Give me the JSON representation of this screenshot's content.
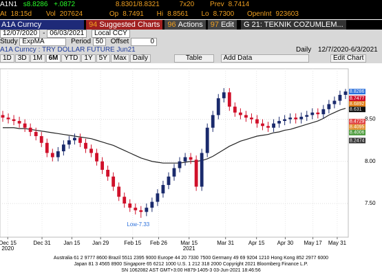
{
  "header": {
    "ticker": "A1N1",
    "last": "s8.8286",
    "change": "+.0872",
    "bid_ask": "8.8301/8.8321",
    "size": "7x20",
    "prev_label": "Prev",
    "prev": "8.7414",
    "time_label": "At",
    "time": "18:15d",
    "vol_label": "Vol",
    "vol": "207624",
    "op_label": "Op",
    "op": "8.7491",
    "hi_label": "Hi",
    "hi": "8.8561",
    "lo_label": "Lo",
    "lo": "8.7300",
    "oi_label": "OpenInt",
    "oi": "923603"
  },
  "toolbar": {
    "security": "A1A Curncy",
    "menu": [
      {
        "num": "94",
        "label": "Suggested Charts"
      },
      {
        "num": "96",
        "label": "Actions"
      },
      {
        "num": "97",
        "label": "Edit"
      }
    ],
    "page": "G 21: TEKNIK COZUMLEM..."
  },
  "settings": {
    "start": "12/07/2020",
    "sep": "-",
    "end": "06/03/2021",
    "ccy": "Local CCY",
    "study_label": "Study",
    "study": "ExpMA",
    "period_label": "Period",
    "period": "50",
    "offset_label": "Offset",
    "offset": "0"
  },
  "chart_header": {
    "title": "A1A Curncy : TRY DOLLAR FUTURE Jun21",
    "freq": "Daily",
    "range": "12/7/2020-6/3/2021"
  },
  "buttons": [
    "1D",
    "3D",
    "1M",
    "6M",
    "YTD",
    "1Y",
    "5Y",
    "Max",
    "Daily"
  ],
  "table_btn": "Table",
  "add_data": "Add Data",
  "edit_chart": "Edit Chart",
  "chart_data": {
    "type": "candlestick",
    "up_color": "#1a2a6c",
    "down_color": "#d0102a",
    "grid": true,
    "xlim": [
      0,
      63
    ],
    "xticks": [
      {
        "value": 1.4,
        "label": "Dec 15"
      },
      {
        "value": 7.6,
        "label": "Dec 31"
      },
      {
        "value": 13,
        "label": "Jan 15"
      },
      {
        "value": 18.2,
        "label": "Jan 29"
      },
      {
        "value": 24,
        "label": "Feb 15"
      },
      {
        "value": 28.7,
        "label": "Feb 26"
      },
      {
        "value": 34.2,
        "label": "Mar 15"
      },
      {
        "value": 40.8,
        "label": "Mar 31"
      },
      {
        "value": 46.4,
        "label": "Apr 15"
      },
      {
        "value": 51.6,
        "label": "Apr 30"
      },
      {
        "value": 56.6,
        "label": "May 17"
      },
      {
        "value": 61,
        "label": "May 31"
      }
    ],
    "year_labels": [
      {
        "value": 1.4,
        "label": "2020"
      },
      {
        "value": 34.2,
        "label": "2021"
      }
    ],
    "ylim": [
      7.1,
      9.1
    ],
    "yticks": [
      {
        "value": 7.5,
        "label": "7.50"
      },
      {
        "value": 8,
        "label": "8.00"
      },
      {
        "value": 8.5,
        "label": "8.50"
      }
    ],
    "open": [
      8.55,
      8.52,
      8.5,
      8.48,
      8.45,
      8.4,
      8.35,
      8.3,
      8.22,
      8.1,
      8.05,
      8.12,
      8.2,
      8.25,
      8.28,
      8.22,
      8.15,
      8.1,
      8.0,
      7.9,
      7.82,
      7.7,
      7.58,
      7.5,
      7.45,
      7.42,
      7.4,
      7.45,
      7.52,
      7.62,
      7.72,
      7.82,
      7.92,
      8.0,
      8.05,
      8.02,
      7.7,
      8.1,
      8.4,
      8.55,
      8.75,
      8.82,
      8.65,
      8.58,
      8.55,
      8.52,
      8.5,
      8.45,
      8.42,
      8.4,
      8.45,
      8.48,
      8.5,
      8.52,
      8.5,
      8.53,
      8.55,
      8.58,
      8.56,
      8.62,
      8.68,
      8.72,
      8.79
    ],
    "high": [
      8.6,
      8.57,
      8.55,
      8.53,
      8.5,
      8.45,
      8.4,
      8.35,
      8.27,
      8.15,
      8.17,
      8.25,
      8.3,
      8.33,
      8.33,
      8.27,
      8.2,
      8.15,
      8.05,
      7.95,
      7.87,
      7.75,
      7.63,
      7.55,
      7.5,
      7.47,
      7.5,
      7.57,
      7.67,
      7.77,
      7.87,
      7.97,
      8.05,
      8.1,
      8.1,
      8.07,
      8.15,
      8.45,
      8.6,
      8.8,
      8.87,
      8.87,
      8.7,
      8.63,
      8.6,
      8.57,
      8.55,
      8.5,
      8.47,
      8.5,
      8.53,
      8.55,
      8.57,
      8.57,
      8.58,
      8.6,
      8.63,
      8.63,
      8.67,
      8.73,
      8.77,
      8.84,
      8.86
    ],
    "low": [
      8.47,
      8.45,
      8.43,
      8.4,
      8.35,
      8.3,
      8.25,
      8.17,
      8.05,
      8.0,
      8.0,
      8.07,
      8.15,
      8.2,
      8.17,
      8.1,
      8.05,
      7.95,
      7.85,
      7.77,
      7.65,
      7.53,
      7.45,
      7.4,
      7.37,
      7.33,
      7.35,
      7.4,
      7.47,
      7.57,
      7.67,
      7.77,
      7.87,
      7.95,
      7.97,
      7.65,
      7.65,
      8.05,
      8.35,
      8.5,
      8.7,
      8.6,
      8.53,
      8.5,
      8.47,
      8.45,
      8.4,
      8.37,
      8.35,
      8.35,
      8.4,
      8.43,
      8.45,
      8.45,
      8.45,
      8.48,
      8.5,
      8.51,
      8.51,
      8.57,
      8.63,
      8.67,
      8.74
    ],
    "close": [
      8.52,
      8.5,
      8.48,
      8.45,
      8.4,
      8.35,
      8.3,
      8.22,
      8.1,
      8.05,
      8.12,
      8.2,
      8.25,
      8.28,
      8.22,
      8.15,
      8.1,
      8.0,
      7.9,
      7.82,
      7.7,
      7.58,
      7.5,
      7.45,
      7.42,
      7.4,
      7.45,
      7.52,
      7.62,
      7.72,
      7.82,
      7.92,
      8.0,
      8.05,
      8.02,
      7.7,
      8.1,
      8.4,
      8.55,
      8.75,
      8.82,
      8.65,
      8.58,
      8.55,
      8.52,
      8.5,
      8.45,
      8.42,
      8.4,
      8.45,
      8.48,
      8.5,
      8.52,
      8.5,
      8.53,
      8.55,
      8.58,
      8.56,
      8.62,
      8.68,
      8.72,
      8.79,
      8.83
    ],
    "series": [
      {
        "color": "#222222",
        "values": [
          8.4,
          8.4,
          8.4,
          8.39,
          8.39,
          8.38,
          8.37,
          8.36,
          8.35,
          8.34,
          8.33,
          8.32,
          8.31,
          8.3,
          8.29,
          8.28,
          8.27,
          8.25,
          8.23,
          8.21,
          8.19,
          8.16,
          8.13,
          8.1,
          8.07,
          8.04,
          8.02,
          8.0,
          7.99,
          7.98,
          7.98,
          7.98,
          7.98,
          7.99,
          8.0,
          8.0,
          8.01,
          8.03,
          8.06,
          8.1,
          8.14,
          8.18,
          8.21,
          8.24,
          8.26,
          8.28,
          8.3,
          8.31,
          8.32,
          8.34,
          8.35,
          8.37,
          8.38,
          8.4,
          8.42,
          8.44,
          8.46,
          8.48,
          8.51,
          8.55,
          8.58,
          8.61,
          8.63
        ]
      }
    ],
    "value_tags": [
      {
        "value": 8.8286,
        "color": "#2a6fdb"
      },
      {
        "value": 8.7477,
        "color": "#d0102a"
      },
      {
        "value": 8.6892,
        "color": "#e07a10"
      },
      {
        "value": 8.631,
        "color": "#111111"
      },
      {
        "value": 8.4729,
        "color": "#e04040"
      },
      {
        "value": 8.4095,
        "color": "#e09030"
      },
      {
        "value": 8.4006,
        "color": "#4a9a3a"
      },
      {
        "value": 8.2474,
        "color": "#333333"
      }
    ],
    "annotation": {
      "text": "Low-7.33",
      "value": 7.33,
      "x": 25
    }
  },
  "footer": [
    "Australia 61 2 9777 8600 Brazil 5511 2395 9000 Europe 44 20 7330 7500 Germany 49 69 9204 1210 Hong Kong 852 2977 6000",
    "Japan 81 3 4565 8900      Singapore 65 6212 1000      U.S. 1 212 318 2000          Copyright 2021 Bloomberg Finance L.P.",
    "SN 1062082 AST  GMT+3:00 H879-1405-3 03-Jun-2021 18:46:56"
  ]
}
